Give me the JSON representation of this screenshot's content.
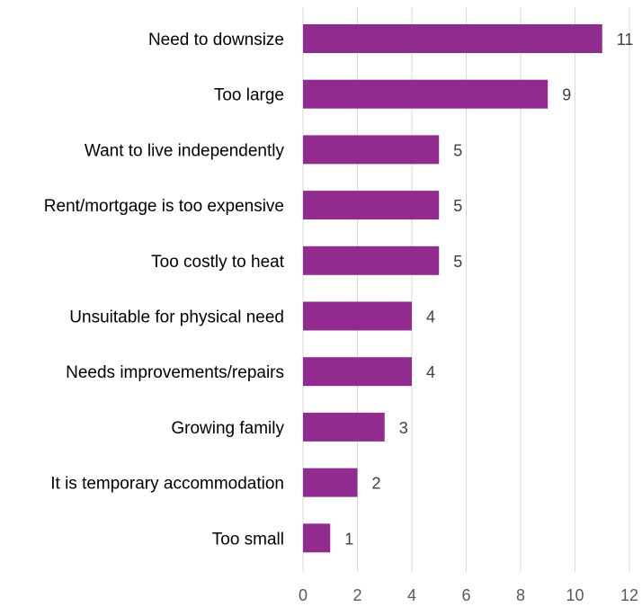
{
  "chart_data": {
    "type": "bar",
    "orientation": "horizontal",
    "categories": [
      "Need to downsize",
      "Too large",
      "Want to live independently",
      "Rent/mortgage is too expensive",
      "Too costly to heat",
      "Unsuitable for physical need",
      "Needs improvements/repairs",
      "Growing family",
      "It is temporary accommodation",
      "Too small"
    ],
    "values": [
      11,
      9,
      5,
      5,
      5,
      4,
      4,
      3,
      2,
      1
    ],
    "data_labels": [
      "11",
      "9",
      "5",
      "5",
      "5",
      "4",
      "4",
      "3",
      "2",
      "1"
    ],
    "x_ticks": [
      0,
      2,
      4,
      6,
      8,
      10,
      12
    ],
    "xlim": [
      0,
      12
    ],
    "title": "",
    "xlabel": "",
    "ylabel": "",
    "grid": "vertical",
    "legend": "none",
    "colors": {
      "bar": "#922B8F",
      "grid": "#D9D9D9",
      "label_text": "#000000",
      "tick_text": "#595959",
      "data_label_text": "#404040"
    }
  }
}
